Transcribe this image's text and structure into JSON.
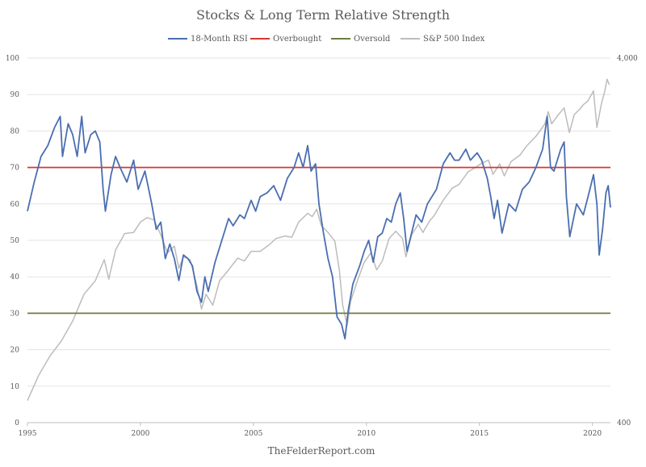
{
  "chart_data": {
    "type": "line",
    "title": "Stocks & Long Term Relative Strength",
    "credit": "TheFelderReport.com",
    "legend_position": "top",
    "grid": true,
    "x_range": [
      1995.0,
      2020.8
    ],
    "x_ticks": [
      1995,
      2000,
      2005,
      2010,
      2015,
      2020
    ],
    "y_left": {
      "range": [
        0,
        100
      ],
      "ticks": [
        0,
        10,
        20,
        30,
        40,
        50,
        60,
        70,
        80,
        90,
        100
      ]
    },
    "y_right": {
      "scale": "log",
      "range": [
        400,
        4000
      ],
      "ticks": [
        400,
        4000
      ],
      "tick_labels": [
        "400",
        "4,000"
      ]
    },
    "series": [
      {
        "name": "18-Month RSI",
        "axis": "left",
        "color": "#4a6eb0",
        "points": [
          [
            1995.0,
            58
          ],
          [
            1995.3,
            66
          ],
          [
            1995.6,
            73
          ],
          [
            1995.9,
            76
          ],
          [
            1996.2,
            81
          ],
          [
            1996.45,
            84
          ],
          [
            1996.55,
            73
          ],
          [
            1996.8,
            82
          ],
          [
            1997.0,
            79
          ],
          [
            1997.2,
            73
          ],
          [
            1997.4,
            84
          ],
          [
            1997.55,
            74
          ],
          [
            1997.8,
            79
          ],
          [
            1998.0,
            80
          ],
          [
            1998.2,
            77
          ],
          [
            1998.35,
            64
          ],
          [
            1998.45,
            58
          ],
          [
            1998.7,
            68
          ],
          [
            1998.9,
            73
          ],
          [
            1999.1,
            70
          ],
          [
            1999.4,
            66
          ],
          [
            1999.7,
            72
          ],
          [
            1999.9,
            64
          ],
          [
            2000.2,
            69
          ],
          [
            2000.5,
            60
          ],
          [
            2000.7,
            53
          ],
          [
            2000.9,
            55
          ],
          [
            2001.1,
            45
          ],
          [
            2001.3,
            49
          ],
          [
            2001.5,
            45
          ],
          [
            2001.7,
            39
          ],
          [
            2001.9,
            46
          ],
          [
            2002.1,
            45
          ],
          [
            2002.3,
            43
          ],
          [
            2002.5,
            36
          ],
          [
            2002.7,
            33
          ],
          [
            2002.85,
            40
          ],
          [
            2003.0,
            36
          ],
          [
            2003.3,
            44
          ],
          [
            2003.6,
            50
          ],
          [
            2003.9,
            56
          ],
          [
            2004.1,
            54
          ],
          [
            2004.4,
            57
          ],
          [
            2004.6,
            56
          ],
          [
            2004.9,
            61
          ],
          [
            2005.1,
            58
          ],
          [
            2005.3,
            62
          ],
          [
            2005.6,
            63
          ],
          [
            2005.9,
            65
          ],
          [
            2006.2,
            61
          ],
          [
            2006.5,
            67
          ],
          [
            2006.8,
            70
          ],
          [
            2007.0,
            74
          ],
          [
            2007.2,
            70
          ],
          [
            2007.4,
            76
          ],
          [
            2007.55,
            69
          ],
          [
            2007.75,
            71
          ],
          [
            2007.9,
            60
          ],
          [
            2008.1,
            52
          ],
          [
            2008.3,
            45
          ],
          [
            2008.5,
            40
          ],
          [
            2008.7,
            29
          ],
          [
            2008.9,
            27
          ],
          [
            2009.05,
            23
          ],
          [
            2009.2,
            31
          ],
          [
            2009.4,
            38
          ],
          [
            2009.7,
            43
          ],
          [
            2009.9,
            47
          ],
          [
            2010.1,
            50
          ],
          [
            2010.3,
            44
          ],
          [
            2010.5,
            51
          ],
          [
            2010.7,
            52
          ],
          [
            2010.9,
            56
          ],
          [
            2011.1,
            55
          ],
          [
            2011.3,
            60
          ],
          [
            2011.5,
            63
          ],
          [
            2011.65,
            56
          ],
          [
            2011.8,
            47
          ],
          [
            2012.0,
            52
          ],
          [
            2012.2,
            57
          ],
          [
            2012.45,
            55
          ],
          [
            2012.7,
            60
          ],
          [
            2012.9,
            62
          ],
          [
            2013.1,
            64
          ],
          [
            2013.4,
            71
          ],
          [
            2013.7,
            74
          ],
          [
            2013.9,
            72
          ],
          [
            2014.1,
            72
          ],
          [
            2014.4,
            75
          ],
          [
            2014.6,
            72
          ],
          [
            2014.9,
            74
          ],
          [
            2015.1,
            72
          ],
          [
            2015.35,
            67
          ],
          [
            2015.5,
            62
          ],
          [
            2015.65,
            56
          ],
          [
            2015.8,
            61
          ],
          [
            2016.0,
            52
          ],
          [
            2016.3,
            60
          ],
          [
            2016.6,
            58
          ],
          [
            2016.9,
            64
          ],
          [
            2017.2,
            66
          ],
          [
            2017.5,
            70
          ],
          [
            2017.8,
            75
          ],
          [
            2018.0,
            84
          ],
          [
            2018.15,
            70
          ],
          [
            2018.3,
            69
          ],
          [
            2018.6,
            75
          ],
          [
            2018.75,
            77
          ],
          [
            2018.85,
            62
          ],
          [
            2019.0,
            51
          ],
          [
            2019.3,
            60
          ],
          [
            2019.6,
            57
          ],
          [
            2019.85,
            63
          ],
          [
            2020.05,
            68
          ],
          [
            2020.2,
            60
          ],
          [
            2020.3,
            46
          ],
          [
            2020.45,
            53
          ],
          [
            2020.6,
            63
          ],
          [
            2020.7,
            65
          ],
          [
            2020.8,
            59
          ]
        ]
      },
      {
        "name": "Overbought",
        "axis": "left",
        "color": "#d7372f",
        "points": [
          [
            1995.0,
            70
          ],
          [
            2020.8,
            70
          ]
        ]
      },
      {
        "name": "Oversold",
        "axis": "left",
        "color": "#6b7f3a",
        "points": [
          [
            1995.0,
            30
          ],
          [
            2020.8,
            30
          ]
        ]
      },
      {
        "name": "S&P 500 Index",
        "axis": "right",
        "color": "#bcbcbc",
        "points": [
          [
            1995.0,
            460
          ],
          [
            1995.5,
            540
          ],
          [
            1996.0,
            610
          ],
          [
            1996.5,
            670
          ],
          [
            1997.0,
            760
          ],
          [
            1997.5,
            900
          ],
          [
            1998.0,
            980
          ],
          [
            1998.4,
            1120
          ],
          [
            1998.6,
            990
          ],
          [
            1998.9,
            1190
          ],
          [
            1999.3,
            1320
          ],
          [
            1999.7,
            1330
          ],
          [
            2000.0,
            1420
          ],
          [
            2000.3,
            1460
          ],
          [
            2000.6,
            1440
          ],
          [
            2000.9,
            1310
          ],
          [
            2001.2,
            1170
          ],
          [
            2001.5,
            1220
          ],
          [
            2001.7,
            1060
          ],
          [
            2001.9,
            1140
          ],
          [
            2002.2,
            1120
          ],
          [
            2002.5,
            950
          ],
          [
            2002.7,
            820
          ],
          [
            2002.9,
            900
          ],
          [
            2003.2,
            840
          ],
          [
            2003.5,
            980
          ],
          [
            2003.9,
            1050
          ],
          [
            2004.3,
            1130
          ],
          [
            2004.6,
            1110
          ],
          [
            2004.9,
            1180
          ],
          [
            2005.3,
            1180
          ],
          [
            2005.7,
            1230
          ],
          [
            2006.0,
            1280
          ],
          [
            2006.4,
            1300
          ],
          [
            2006.7,
            1290
          ],
          [
            2007.0,
            1420
          ],
          [
            2007.4,
            1500
          ],
          [
            2007.6,
            1470
          ],
          [
            2007.8,
            1540
          ],
          [
            2008.0,
            1390
          ],
          [
            2008.3,
            1330
          ],
          [
            2008.6,
            1260
          ],
          [
            2008.8,
            1050
          ],
          [
            2008.95,
            840
          ],
          [
            2009.15,
            740
          ],
          [
            2009.3,
            860
          ],
          [
            2009.6,
            980
          ],
          [
            2009.9,
            1100
          ],
          [
            2010.2,
            1170
          ],
          [
            2010.45,
            1050
          ],
          [
            2010.7,
            1110
          ],
          [
            2011.0,
            1280
          ],
          [
            2011.3,
            1340
          ],
          [
            2011.6,
            1280
          ],
          [
            2011.75,
            1140
          ],
          [
            2012.0,
            1310
          ],
          [
            2012.3,
            1400
          ],
          [
            2012.5,
            1330
          ],
          [
            2012.8,
            1430
          ],
          [
            2013.0,
            1480
          ],
          [
            2013.4,
            1630
          ],
          [
            2013.8,
            1760
          ],
          [
            2014.1,
            1800
          ],
          [
            2014.5,
            1950
          ],
          [
            2014.8,
            2000
          ],
          [
            2015.1,
            2060
          ],
          [
            2015.4,
            2100
          ],
          [
            2015.6,
            1920
          ],
          [
            2015.9,
            2050
          ],
          [
            2016.1,
            1900
          ],
          [
            2016.4,
            2080
          ],
          [
            2016.8,
            2170
          ],
          [
            2017.1,
            2300
          ],
          [
            2017.5,
            2440
          ],
          [
            2017.9,
            2640
          ],
          [
            2018.05,
            2850
          ],
          [
            2018.2,
            2640
          ],
          [
            2018.5,
            2800
          ],
          [
            2018.75,
            2920
          ],
          [
            2018.98,
            2500
          ],
          [
            2019.2,
            2800
          ],
          [
            2019.45,
            2900
          ],
          [
            2019.6,
            2980
          ],
          [
            2019.8,
            3050
          ],
          [
            2020.05,
            3250
          ],
          [
            2020.2,
            2580
          ],
          [
            2020.4,
            3000
          ],
          [
            2020.55,
            3250
          ],
          [
            2020.65,
            3500
          ],
          [
            2020.75,
            3380
          ]
        ]
      }
    ]
  }
}
